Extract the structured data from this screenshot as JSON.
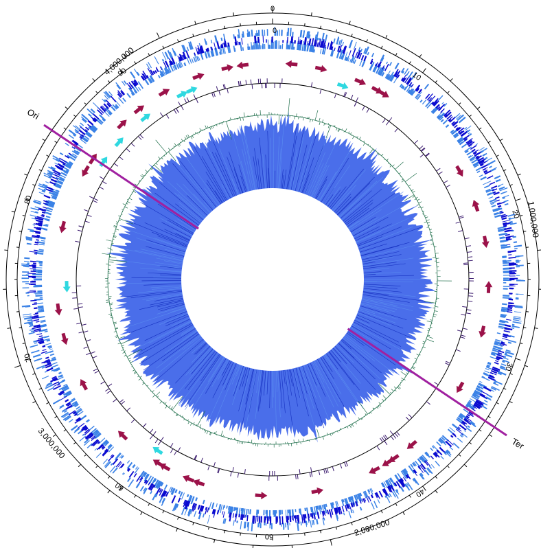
{
  "outer_labels": {
    "top": "0",
    "right": "1,000,000",
    "bottom": "2,000,000",
    "left": "3,000,000",
    "top_left": "4,000,000"
  },
  "percent_labels": [
    "0",
    "10",
    "20",
    "30",
    "40",
    "50",
    "60",
    "70",
    "80",
    "90"
  ],
  "markers": {
    "ori_label": "Ori",
    "ter_label": "Ter"
  },
  "colors": {
    "outer_ring": "#000000",
    "gene_light": "#3b82e6",
    "gene_dark": "#0a0ad0",
    "rna_arrow": "#9b1249",
    "rrna_arrow": "#2fd8e0",
    "feature_ticks": "#3a1a6e",
    "gc_skew": "#1e6e4a",
    "coverage": "#2a55e6",
    "ori_ter_line": "#a020a0"
  },
  "tracks": {
    "rna_arrows": [
      {
        "angle": 5,
        "dir": "ccw"
      },
      {
        "angle": 13,
        "dir": "cw"
      },
      {
        "angle": 24,
        "dir": "cw"
      },
      {
        "angle": 29,
        "dir": "cw"
      },
      {
        "angle": 31,
        "dir": "cw"
      },
      {
        "angle": 60,
        "dir": "cw"
      },
      {
        "angle": 70,
        "dir": "ccw"
      },
      {
        "angle": 80,
        "dir": "cw"
      },
      {
        "angle": 92,
        "dir": "ccw"
      },
      {
        "angle": 104,
        "dir": "cw"
      },
      {
        "angle": 120,
        "dir": "cw"
      },
      {
        "angle": 140,
        "dir": "cw"
      },
      {
        "angle": 146,
        "dir": "cw"
      },
      {
        "angle": 148,
        "dir": "cw"
      },
      {
        "angle": 152,
        "dir": "cw"
      },
      {
        "angle": 168,
        "dir": "ccw"
      },
      {
        "angle": 183,
        "dir": "ccw"
      },
      {
        "angle": 200,
        "dir": "cw"
      },
      {
        "angle": 203,
        "dir": "cw"
      },
      {
        "angle": 210,
        "dir": "cw"
      },
      {
        "angle": 212,
        "dir": "cw"
      },
      {
        "angle": 224,
        "dir": "cw"
      },
      {
        "angle": 241,
        "dir": "cw"
      },
      {
        "angle": 254,
        "dir": "ccw"
      },
      {
        "angle": 262,
        "dir": "ccw"
      },
      {
        "angle": 284,
        "dir": "ccw"
      },
      {
        "angle": 300,
        "dir": "ccw"
      },
      {
        "angle": 304,
        "dir": "cw"
      },
      {
        "angle": 316,
        "dir": "cw"
      },
      {
        "angle": 322,
        "dir": "cw"
      },
      {
        "angle": 330,
        "dir": "cw"
      },
      {
        "angle": 340,
        "dir": "cw"
      },
      {
        "angle": 348,
        "dir": "cw"
      },
      {
        "angle": 352,
        "dir": "ccw"
      }
    ],
    "rrna_arrows": [
      {
        "angle": 20,
        "dir": "cw"
      },
      {
        "angle": 214,
        "dir": "cw"
      },
      {
        "angle": 268,
        "dir": "ccw"
      },
      {
        "angle": 305,
        "dir": "cw"
      },
      {
        "angle": 312,
        "dir": "cw"
      },
      {
        "angle": 322,
        "dir": "cw"
      },
      {
        "angle": 334,
        "dir": "cw"
      },
      {
        "angle": 337,
        "dir": "cw"
      }
    ]
  }
}
